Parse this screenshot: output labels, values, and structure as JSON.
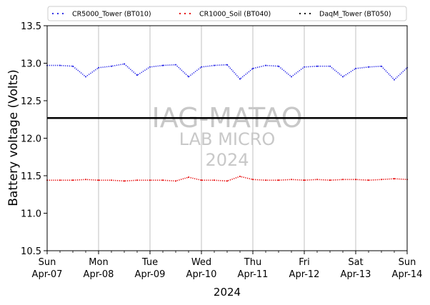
{
  "chart_data": {
    "type": "line",
    "title": "",
    "xlabel": "2024",
    "ylabel": "Battery voltage (Volts)",
    "ylim": [
      10.5,
      13.5
    ],
    "yticks": [
      "10.5",
      "11.0",
      "11.5",
      "12.0",
      "12.5",
      "13.0",
      "13.5"
    ],
    "xlim_days": [
      0,
      7
    ],
    "xticks": [
      {
        "day": "Sun",
        "date": "Apr-07"
      },
      {
        "day": "Mon",
        "date": "Apr-08"
      },
      {
        "day": "Tue",
        "date": "Apr-09"
      },
      {
        "day": "Wed",
        "date": "Apr-10"
      },
      {
        "day": "Thu",
        "date": "Apr-11"
      },
      {
        "day": "Fri",
        "date": "Apr-12"
      },
      {
        "day": "Sat",
        "date": "Apr-13"
      },
      {
        "day": "Sun",
        "date": "Apr-14"
      }
    ],
    "grid": "vertical",
    "legend_position": "top",
    "reference_line": 12.27,
    "watermark": [
      "IAG-MATAO",
      "LAB MICRO",
      "2024"
    ],
    "series": [
      {
        "name": "CR5000_Tower (BT010)",
        "color": "#1f1fe6",
        "x": [
          "Apr-07 00:00",
          "Apr-07 06:00",
          "Apr-07 12:00",
          "Apr-07 18:00",
          "Apr-08 00:00",
          "Apr-08 06:00",
          "Apr-08 12:00",
          "Apr-08 18:00",
          "Apr-09 00:00",
          "Apr-09 06:00",
          "Apr-09 12:00",
          "Apr-09 18:00",
          "Apr-10 00:00",
          "Apr-10 06:00",
          "Apr-10 12:00",
          "Apr-10 18:00",
          "Apr-11 00:00",
          "Apr-11 06:00",
          "Apr-11 12:00",
          "Apr-11 18:00",
          "Apr-12 00:00",
          "Apr-12 06:00",
          "Apr-12 12:00",
          "Apr-12 18:00",
          "Apr-13 00:00",
          "Apr-13 06:00",
          "Apr-13 12:00",
          "Apr-13 18:00",
          "Apr-14 00:00"
        ],
        "values": [
          12.97,
          12.97,
          12.96,
          12.82,
          12.94,
          12.96,
          12.99,
          12.84,
          12.95,
          12.97,
          12.98,
          12.82,
          12.95,
          12.97,
          12.98,
          12.79,
          12.93,
          12.97,
          12.96,
          12.82,
          12.95,
          12.96,
          12.96,
          12.82,
          12.93,
          12.95,
          12.96,
          12.78,
          12.94
        ]
      },
      {
        "name": "CR1000_Soil (BT040)",
        "color": "#e60000",
        "x": [
          "Apr-07 00:00",
          "Apr-07 06:00",
          "Apr-07 12:00",
          "Apr-07 18:00",
          "Apr-08 00:00",
          "Apr-08 06:00",
          "Apr-08 12:00",
          "Apr-08 18:00",
          "Apr-09 00:00",
          "Apr-09 06:00",
          "Apr-09 12:00",
          "Apr-09 18:00",
          "Apr-10 00:00",
          "Apr-10 06:00",
          "Apr-10 12:00",
          "Apr-10 18:00",
          "Apr-11 00:00",
          "Apr-11 06:00",
          "Apr-11 12:00",
          "Apr-11 18:00",
          "Apr-12 00:00",
          "Apr-12 06:00",
          "Apr-12 12:00",
          "Apr-12 18:00",
          "Apr-13 00:00",
          "Apr-13 06:00",
          "Apr-13 12:00",
          "Apr-13 18:00",
          "Apr-14 00:00"
        ],
        "values": [
          11.44,
          11.44,
          11.44,
          11.45,
          11.44,
          11.44,
          11.43,
          11.44,
          11.44,
          11.44,
          11.43,
          11.48,
          11.44,
          11.44,
          11.43,
          11.49,
          11.45,
          11.44,
          11.44,
          11.45,
          11.44,
          11.45,
          11.44,
          11.45,
          11.45,
          11.44,
          11.45,
          11.46,
          11.45
        ]
      },
      {
        "name": "DaqM_Tower (BT050)",
        "color": "#000000",
        "x": [
          "Apr-07 00:00",
          "Apr-14 00:00"
        ],
        "values": [
          12.27,
          12.27
        ]
      }
    ]
  }
}
